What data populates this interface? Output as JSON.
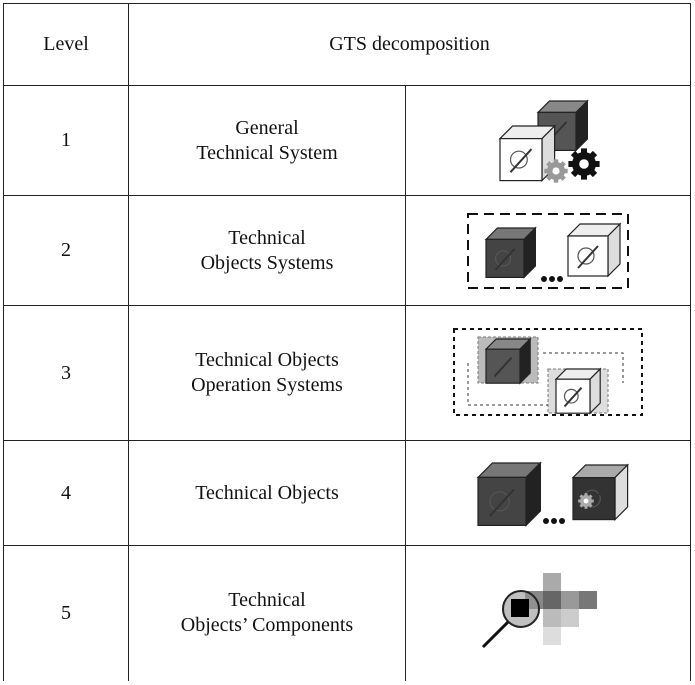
{
  "table": {
    "header": [
      "Level",
      "GTS decomposition"
    ],
    "rows": [
      {
        "level": 1,
        "name": [
          "General",
          "Technical System"
        ]
      },
      {
        "level": 2,
        "name": [
          "Technical",
          "Objects Systems"
        ]
      },
      {
        "level": 3,
        "name": [
          "Technical Objects",
          "Operation Systems"
        ]
      },
      {
        "level": 4,
        "name": [
          "Technical Objects"
        ]
      },
      {
        "level": 5,
        "name": [
          "Technical",
          "Objects’ Components"
        ]
      }
    ]
  }
}
